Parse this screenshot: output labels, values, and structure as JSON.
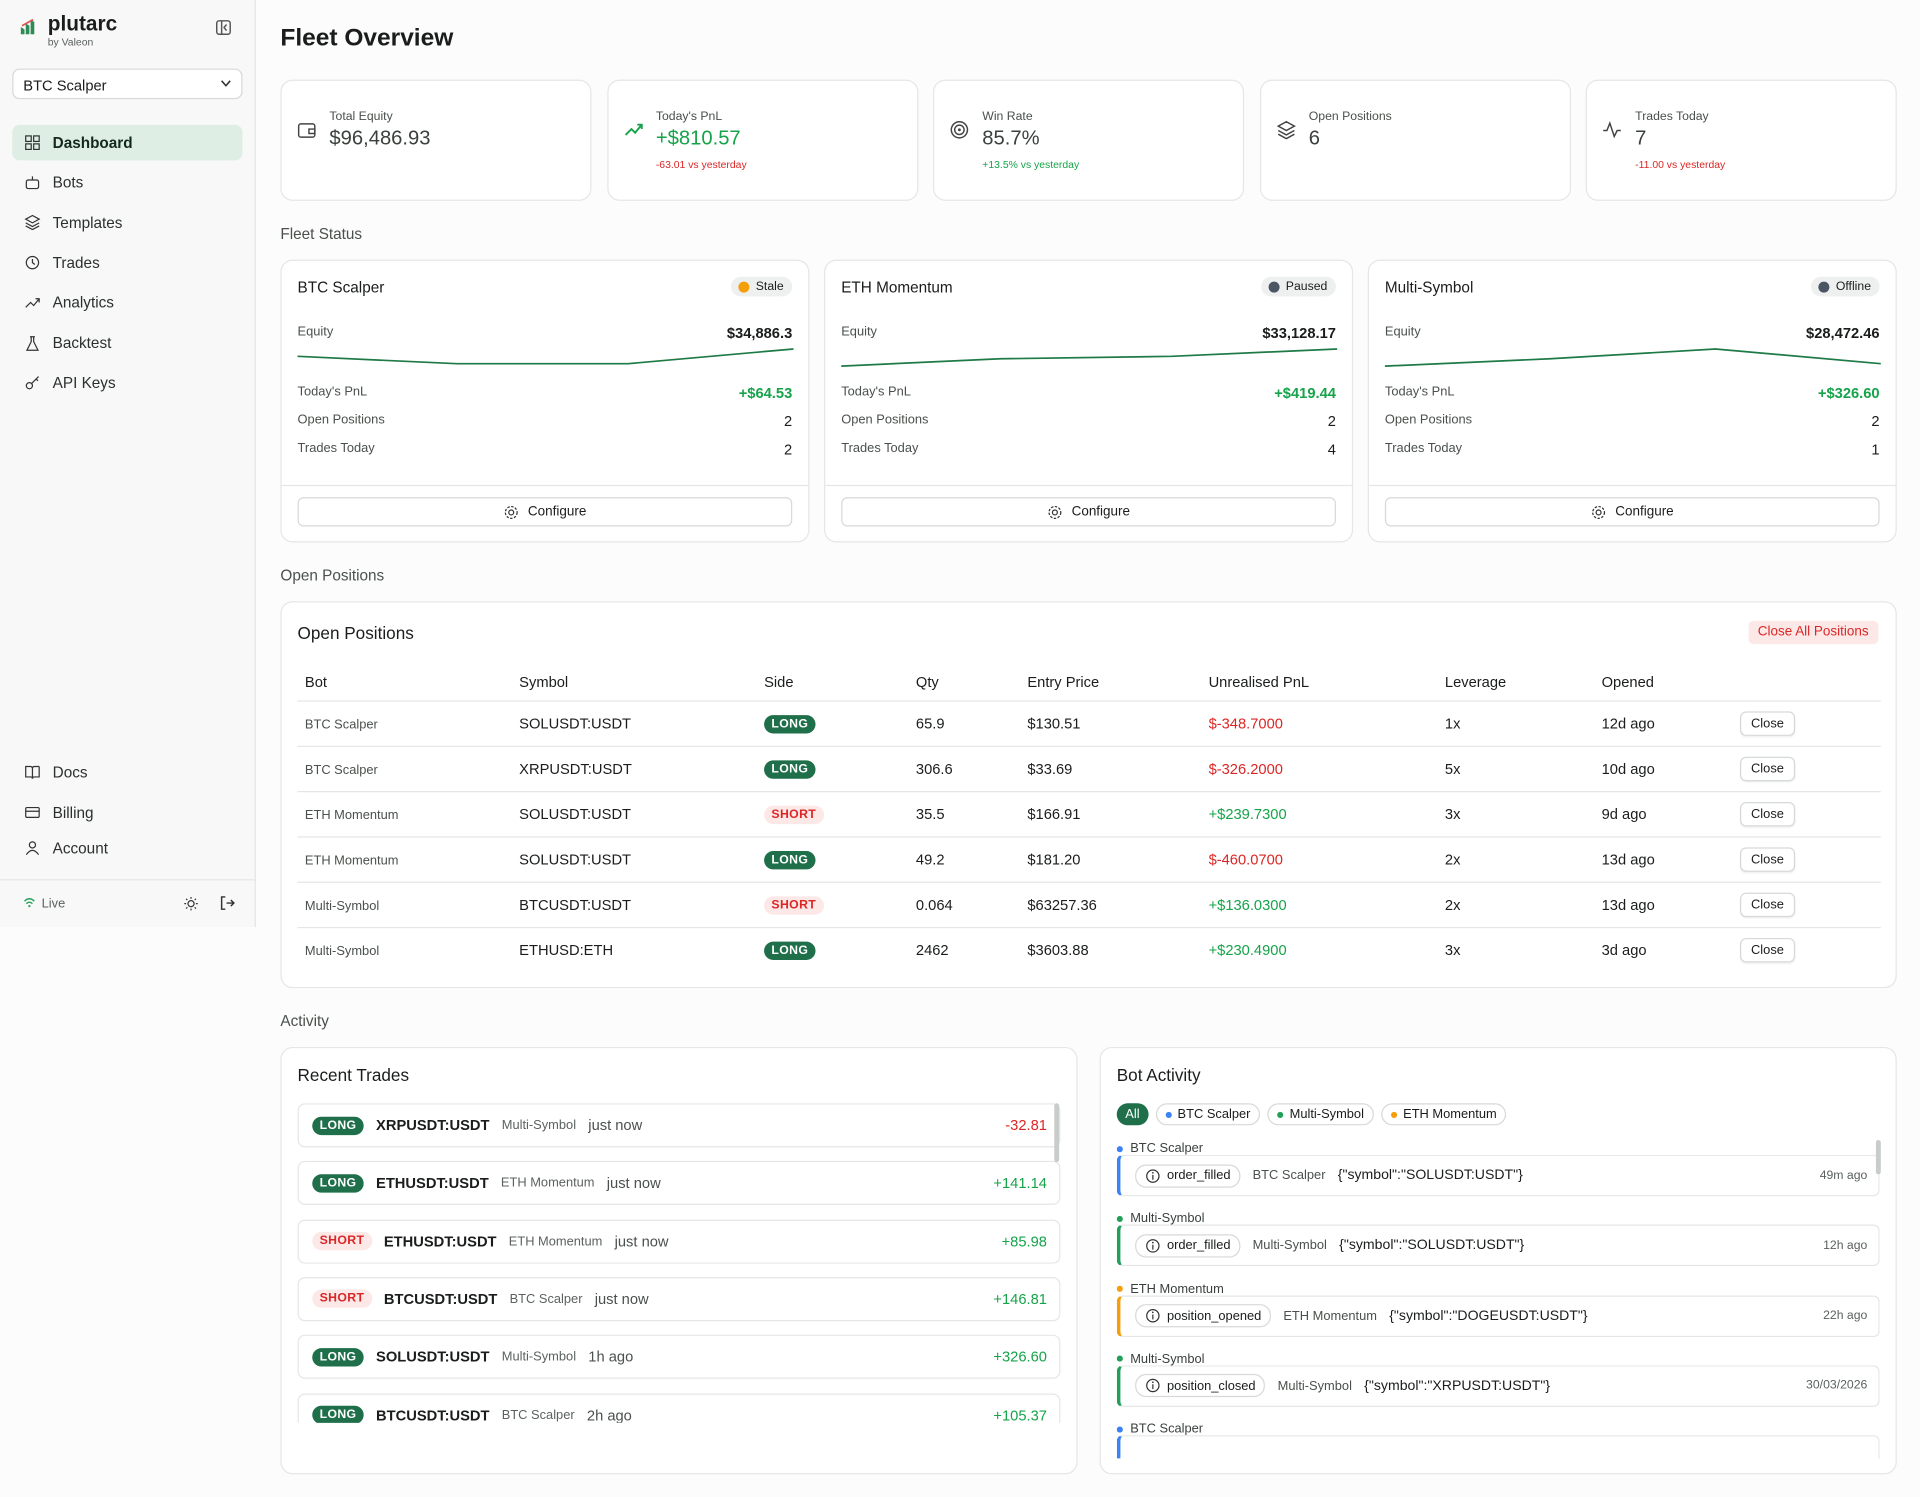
{
  "sidebar": {
    "brand": "plutarc",
    "brand_sub": "by Valeon",
    "bot_selector": "BTC Scalper",
    "nav": [
      "Dashboard",
      "Bots",
      "Templates",
      "Trades",
      "Analytics",
      "Backtest",
      "API Keys"
    ],
    "footer_nav": [
      "Docs",
      "Billing",
      "Account"
    ],
    "status": "Live"
  },
  "page_title": "Fleet Overview",
  "stats": [
    {
      "label": "Total Equity",
      "value": "$96,486.93"
    },
    {
      "label": "Today's PnL",
      "value": "+$810.57",
      "delta": "-63.01 vs yesterday"
    },
    {
      "label": "Win Rate",
      "value": "85.7%",
      "delta": "+13.5% vs yesterday"
    },
    {
      "label": "Open Positions",
      "value": "6"
    },
    {
      "label": "Trades Today",
      "value": "7",
      "delta": "-11.00 vs yesterday"
    }
  ],
  "fleet": {
    "title": "Fleet Status",
    "bots": [
      {
        "name": "BTC Scalper",
        "status": "Stale",
        "status_color": "#f59e0b",
        "equity_label": "Equity",
        "equity": "$34,886.3",
        "pnl_label": "Today's PnL",
        "pnl": "+$64.53",
        "open_label": "Open Positions",
        "open": "2",
        "trades_label": "Trades Today",
        "trades": "2",
        "button": "Configure"
      },
      {
        "name": "ETH Momentum",
        "status": "Paused",
        "status_color": "#4b5563",
        "equity_label": "Equity",
        "equity": "$33,128.17",
        "pnl_label": "Today's PnL",
        "pnl": "+$419.44",
        "open_label": "Open Positions",
        "open": "2",
        "trades_label": "Trades Today",
        "trades": "4",
        "button": "Configure"
      },
      {
        "name": "Multi-Symbol",
        "status": "Offline",
        "status_color": "#4b5563",
        "equity_label": "Equity",
        "equity": "$28,472.46",
        "pnl_label": "Today's PnL",
        "pnl": "+$326.60",
        "open_label": "Open Positions",
        "open": "2",
        "trades_label": "Trades Today",
        "trades": "1",
        "button": "Configure"
      }
    ]
  },
  "positions": {
    "section": "Open Positions",
    "title": "Open Positions",
    "close_all": "Close All Positions",
    "columns": [
      "Bot",
      "Symbol",
      "Side",
      "Qty",
      "Entry Price",
      "Unrealised PnL",
      "Leverage",
      "Opened"
    ],
    "rows": [
      {
        "bot": "BTC Scalper",
        "symbol": "SOLUSDT:USDT",
        "side": "LONG",
        "side_bg": "#1e6f4a",
        "side_fg": "#ffffff",
        "qty": "65.9",
        "entry": "$130.51",
        "pnl": "$-348.7000",
        "leverage": "1x",
        "opened": "12d ago",
        "action": "Close"
      },
      {
        "bot": "BTC Scalper",
        "symbol": "XRPUSDT:USDT",
        "side": "LONG",
        "side_bg": "#1e6f4a",
        "side_fg": "#ffffff",
        "qty": "306.6",
        "entry": "$33.69",
        "pnl": "$-326.2000",
        "leverage": "5x",
        "opened": "10d ago",
        "action": "Close"
      },
      {
        "bot": "ETH Momentum",
        "symbol": "SOLUSDT:USDT",
        "side": "SHORT",
        "side_bg": "#fde8e8",
        "side_fg": "#dc2626",
        "qty": "35.5",
        "entry": "$166.91",
        "pnl": "+$239.7300",
        "leverage": "3x",
        "opened": "9d ago",
        "action": "Close"
      },
      {
        "bot": "ETH Momentum",
        "symbol": "SOLUSDT:USDT",
        "side": "LONG",
        "side_bg": "#1e6f4a",
        "side_fg": "#ffffff",
        "qty": "49.2",
        "entry": "$181.20",
        "pnl": "$-460.0700",
        "leverage": "2x",
        "opened": "13d ago",
        "action": "Close"
      },
      {
        "bot": "Multi-Symbol",
        "symbol": "BTCUSDT:USDT",
        "side": "SHORT",
        "side_bg": "#fde8e8",
        "side_fg": "#dc2626",
        "qty": "0.064",
        "entry": "$63257.36",
        "pnl": "+$136.0300",
        "leverage": "2x",
        "opened": "13d ago",
        "action": "Close"
      },
      {
        "bot": "Multi-Symbol",
        "symbol": "ETHUSD:ETH",
        "side": "LONG",
        "side_bg": "#1e6f4a",
        "side_fg": "#ffffff",
        "qty": "2462",
        "entry": "$3603.88",
        "pnl": "+$230.4900",
        "leverage": "3x",
        "opened": "3d ago",
        "action": "Close"
      }
    ]
  },
  "activity": {
    "section": "Activity",
    "trades_title": "Recent Trades",
    "trades": [
      {
        "side": "LONG",
        "side_bg": "#1e6f4a",
        "side_fg": "#ffffff",
        "symbol": "XRPUSDT:USDT",
        "bot": "Multi-Symbol",
        "time": "just now",
        "pnl": "-32.81"
      },
      {
        "side": "LONG",
        "side_bg": "#1e6f4a",
        "side_fg": "#ffffff",
        "symbol": "ETHUSDT:USDT",
        "bot": "ETH Momentum",
        "time": "just now",
        "pnl": "+141.14"
      },
      {
        "side": "SHORT",
        "side_bg": "#fde8e8",
        "side_fg": "#dc2626",
        "symbol": "ETHUSDT:USDT",
        "bot": "ETH Momentum",
        "time": "just now",
        "pnl": "+85.98"
      },
      {
        "side": "SHORT",
        "side_bg": "#fde8e8",
        "side_fg": "#dc2626",
        "symbol": "BTCUSDT:USDT",
        "bot": "BTC Scalper",
        "time": "just now",
        "pnl": "+146.81"
      },
      {
        "side": "LONG",
        "side_bg": "#1e6f4a",
        "side_fg": "#ffffff",
        "symbol": "SOLUSDT:USDT",
        "bot": "Multi-Symbol",
        "time": "1h ago",
        "pnl": "+326.60"
      },
      {
        "side": "LONG",
        "side_bg": "#1e6f4a",
        "side_fg": "#ffffff",
        "symbol": "BTCUSDT:USDT",
        "bot": "BTC Scalper",
        "time": "2h ago",
        "pnl": "+105.37"
      }
    ],
    "bot_title": "Bot Activity",
    "filters": [
      {
        "label": "All",
        "color": "#1e6f4a"
      },
      {
        "label": "BTC Scalper",
        "color": "#3b82f6"
      },
      {
        "label": "Multi-Symbol",
        "color": "#22a05a"
      },
      {
        "label": "ETH Momentum",
        "color": "#f59e0b"
      }
    ],
    "events": [
      {
        "bot": "BTC Scalper",
        "color": "#3b82f6",
        "type": "order_filled",
        "source": "BTC Scalper",
        "payload": "{\"symbol\":\"SOLUSDT:USDT\"}",
        "time": "49m ago"
      },
      {
        "bot": "Multi-Symbol",
        "color": "#22a05a",
        "type": "order_filled",
        "source": "Multi-Symbol",
        "payload": "{\"symbol\":\"SOLUSDT:USDT\"}",
        "time": "12h ago"
      },
      {
        "bot": "ETH Momentum",
        "color": "#f59e0b",
        "type": "position_opened",
        "source": "ETH Momentum",
        "payload": "{\"symbol\":\"DOGEUSDT:USDT\"}",
        "time": "22h ago"
      },
      {
        "bot": "Multi-Symbol",
        "color": "#22a05a",
        "type": "position_closed",
        "source": "Multi-Symbol",
        "payload": "{\"symbol\":\"XRPUSDT:USDT\"}",
        "time": "30/03/2026"
      },
      {
        "bot": "BTC Scalper",
        "color": "#3b82f6"
      }
    ]
  }
}
